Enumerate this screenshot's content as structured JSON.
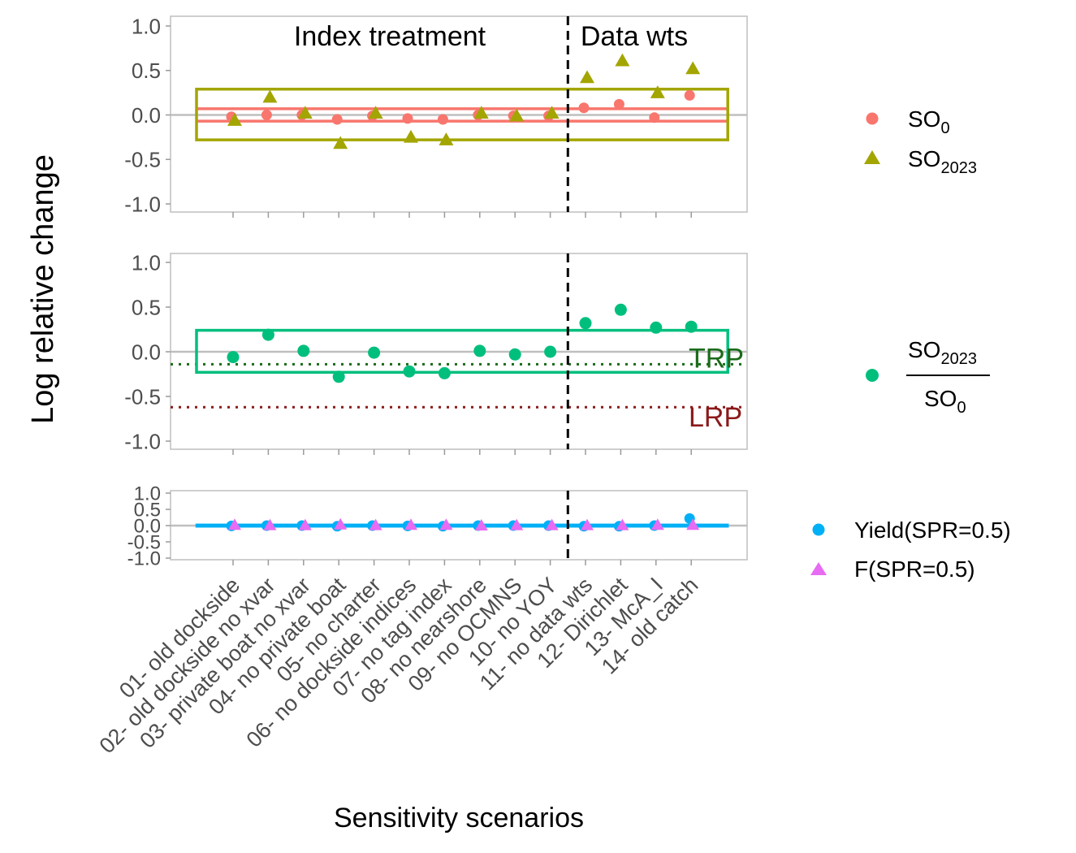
{
  "chart_data": {
    "type": "scatter",
    "ylabel": "Log relative change",
    "xlabel": "Sensitivity scenarios",
    "categories": [
      "01- old dockside",
      "02- old dockside no xvar",
      "03- private boat no xvar",
      "04- no private boat",
      "05- no charter",
      "06- no dockside indices",
      "07- no tag index",
      "08- no nearshore",
      "09- no OCMNS",
      "10- no YOY",
      "11- no data wts",
      "12- Dirichlet",
      "13- McA_I",
      "14- old catch"
    ],
    "ylim": [
      -1.0,
      1.0
    ],
    "yticks": [
      "1.0",
      "0.5",
      "0.0",
      "-0.5",
      "-1.0"
    ],
    "group_labels": [
      "Index treatment",
      "Data wts"
    ],
    "group_divider_after_category": 10,
    "panels": [
      {
        "id": "panel1",
        "series": [
          {
            "name": "SO",
            "name_sub": "0",
            "marker": "circle",
            "color": "#F8766D",
            "values": [
              -0.02,
              0.0,
              0.0,
              -0.05,
              -0.01,
              -0.04,
              -0.05,
              0.0,
              -0.01,
              -0.01,
              0.08,
              0.12,
              -0.03,
              0.22
            ]
          },
          {
            "name": "SO",
            "name_sub": "2023",
            "marker": "triangle",
            "color": "#A3A500",
            "values": [
              -0.06,
              0.2,
              0.02,
              -0.32,
              0.02,
              -0.25,
              -0.28,
              0.02,
              -0.01,
              0.02,
              0.42,
              0.61,
              0.25,
              0.52
            ]
          }
        ],
        "box": {
          "y": [
            -0.28,
            0.29
          ],
          "color": "#A3A500"
        },
        "bands": [
          {
            "y": 0.07,
            "color": "#F8766D"
          },
          {
            "y": -0.07,
            "color": "#F8766D"
          }
        ]
      },
      {
        "id": "panel2",
        "series": [
          {
            "name": "SO2023 / SO0",
            "marker": "circle",
            "color": "#00BF7D",
            "values": [
              -0.06,
              0.19,
              0.01,
              -0.28,
              -0.01,
              -0.22,
              -0.24,
              0.01,
              -0.03,
              0.0,
              0.32,
              0.47,
              0.27,
              0.28
            ]
          }
        ],
        "box": {
          "y": [
            -0.23,
            0.24
          ],
          "color": "#00BF7D"
        },
        "reference_lines": [
          {
            "label": "TRP",
            "y": -0.14,
            "color": "#1A6B1A"
          },
          {
            "label": "LRP",
            "y": -0.62,
            "color": "#8B1A1A"
          }
        ]
      },
      {
        "id": "panel3",
        "series": [
          {
            "name": "Yield(SPR=0.5)",
            "marker": "circle",
            "color": "#00B0F6",
            "values": [
              -0.01,
              0.0,
              0.0,
              -0.02,
              0.0,
              -0.01,
              -0.02,
              0.0,
              0.0,
              0.0,
              -0.02,
              -0.02,
              0.0,
              0.22
            ]
          },
          {
            "name": "F(SPR=0.5)",
            "marker": "triangle",
            "color": "#E76BF3",
            "values": [
              0.02,
              0.01,
              0.01,
              0.03,
              0.01,
              0.02,
              0.02,
              0.0,
              0.01,
              0.01,
              0.01,
              0.01,
              0.02,
              0.02
            ]
          }
        ],
        "box": {
          "y": [
            -0.03,
            0.03
          ],
          "color": "#00B0F6"
        }
      }
    ],
    "legend": {
      "panel1": [
        {
          "marker": "circle",
          "color": "#F8766D",
          "text": "SO",
          "sub": "0"
        },
        {
          "marker": "triangle",
          "color": "#A3A500",
          "text": "SO",
          "sub": "2023"
        }
      ],
      "panel2": [
        {
          "marker": "circle",
          "color": "#00BF7D",
          "num_text": "SO",
          "num_sub": "2023",
          "den_text": "SO",
          "den_sub": "0"
        }
      ],
      "panel3": [
        {
          "marker": "circle",
          "color": "#00B0F6",
          "text": "Yield(SPR=0.5)"
        },
        {
          "marker": "triangle",
          "color": "#E76BF3",
          "text": "F(SPR=0.5)"
        }
      ]
    }
  }
}
